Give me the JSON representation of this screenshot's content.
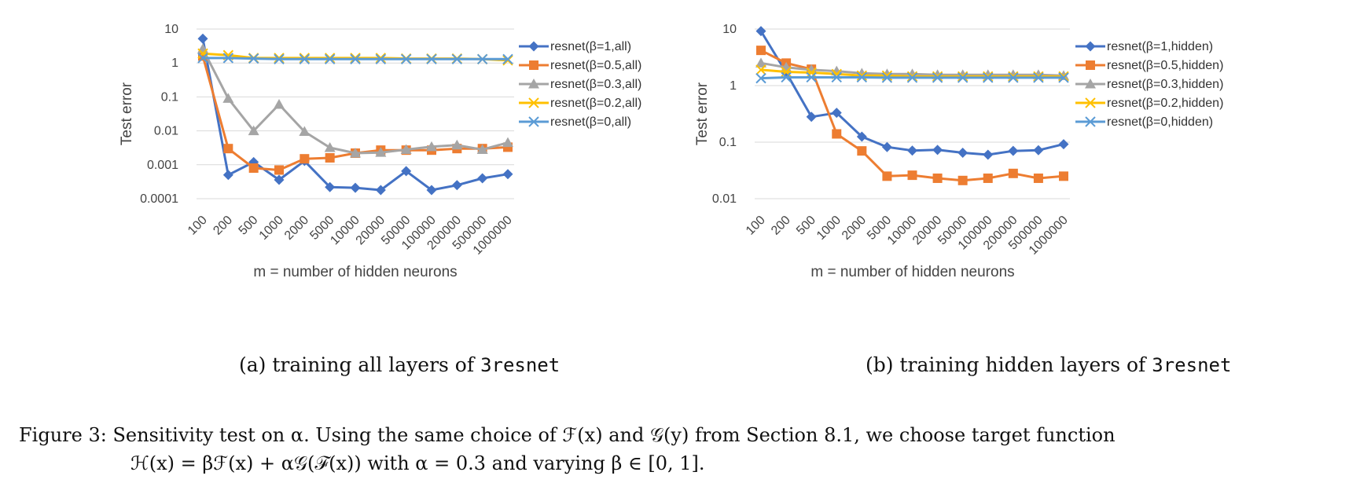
{
  "chart_data": [
    {
      "type": "line",
      "title": "",
      "xlabel": "m = number of hidden neurons",
      "ylabel": "Test error",
      "yscale": "log",
      "ylim": [
        0.0001,
        10
      ],
      "yticks": [
        "10",
        "1",
        "0.1",
        "0.01",
        "0.001",
        "0.0001"
      ],
      "grid": true,
      "legend_position": "right",
      "categories": [
        "100",
        "200",
        "500",
        "1000",
        "2000",
        "5000",
        "10000",
        "20000",
        "50000",
        "100000",
        "200000",
        "500000",
        "1000000"
      ],
      "series": [
        {
          "name": "resnet(β=1,all)",
          "color": "#4472C4",
          "marker": "diamond",
          "values": [
            5.2,
            0.0005,
            0.0012,
            0.00036,
            0.0013,
            0.00022,
            0.00021,
            0.00018,
            0.00065,
            0.00018,
            0.00025,
            0.0004,
            0.00053
          ]
        },
        {
          "name": "resnet(β=0.5,all)",
          "color": "#ED7D31",
          "marker": "square",
          "values": [
            1.6,
            0.003,
            0.0008,
            0.0007,
            0.0015,
            0.0016,
            0.0022,
            0.0027,
            0.0027,
            0.0027,
            0.003,
            0.003,
            0.0033
          ]
        },
        {
          "name": "resnet(β=0.3,all)",
          "color": "#A5A5A5",
          "marker": "triangle",
          "values": [
            2.6,
            0.09,
            0.01,
            0.06,
            0.0095,
            0.0032,
            0.0022,
            0.0023,
            0.0028,
            0.0034,
            0.0038,
            0.0028,
            0.0045
          ]
        },
        {
          "name": "resnet(β=0.2,all)",
          "color": "#FFC000",
          "marker": "x",
          "values": [
            1.9,
            1.7,
            1.4,
            1.4,
            1.4,
            1.4,
            1.4,
            1.4,
            1.35,
            1.35,
            1.35,
            1.3,
            1.2
          ]
        },
        {
          "name": "resnet(β=0,all)",
          "color": "#5B9BD5",
          "marker": "x",
          "values": [
            1.4,
            1.4,
            1.35,
            1.3,
            1.3,
            1.3,
            1.3,
            1.3,
            1.3,
            1.3,
            1.3,
            1.3,
            1.3
          ]
        }
      ]
    },
    {
      "type": "line",
      "title": "",
      "xlabel": "m = number of hidden neurons",
      "ylabel": "Test error",
      "yscale": "log",
      "ylim": [
        0.01,
        10
      ],
      "yticks": [
        "10",
        "1",
        "0.1",
        "0.01"
      ],
      "grid": true,
      "legend_position": "right",
      "categories": [
        "100",
        "200",
        "500",
        "1000",
        "2000",
        "5000",
        "10000",
        "20000",
        "50000",
        "100000",
        "200000",
        "500000",
        "1000000"
      ],
      "series": [
        {
          "name": "resnet(β=1,hidden)",
          "color": "#4472C4",
          "marker": "diamond",
          "values": [
            9.2,
            1.7,
            0.28,
            0.33,
            0.125,
            0.082,
            0.071,
            0.073,
            0.065,
            0.06,
            0.07,
            0.072,
            0.092
          ]
        },
        {
          "name": "resnet(β=0.5,hidden)",
          "color": "#ED7D31",
          "marker": "square",
          "values": [
            4.2,
            2.5,
            1.95,
            0.14,
            0.07,
            0.025,
            0.026,
            0.023,
            0.021,
            0.023,
            0.028,
            0.023,
            0.025
          ]
        },
        {
          "name": "resnet(β=0.3,hidden)",
          "color": "#A5A5A5",
          "marker": "triangle",
          "values": [
            2.5,
            2.1,
            1.9,
            1.8,
            1.65,
            1.6,
            1.6,
            1.55,
            1.55,
            1.55,
            1.55,
            1.55,
            1.5
          ]
        },
        {
          "name": "resnet(β=0.2,hidden)",
          "color": "#FFC000",
          "marker": "x",
          "values": [
            1.9,
            1.75,
            1.7,
            1.6,
            1.5,
            1.5,
            1.45,
            1.45,
            1.45,
            1.45,
            1.45,
            1.45,
            1.45
          ]
        },
        {
          "name": "resnet(β=0,hidden)",
          "color": "#5B9BD5",
          "marker": "x",
          "values": [
            1.35,
            1.4,
            1.4,
            1.4,
            1.4,
            1.38,
            1.38,
            1.38,
            1.38,
            1.38,
            1.38,
            1.38,
            1.38
          ]
        }
      ]
    }
  ],
  "subcaptions": [
    {
      "label": "(a) training all layers of",
      "code": "3resnet"
    },
    {
      "label": "(b) training hidden layers of",
      "code": "3resnet"
    }
  ],
  "caption": {
    "line1": "Figure 3: Sensitivity test on α. Using the same choice of ℱ(x) and 𝒢(y) from Section 8.1, we choose target function",
    "line2": "ℋ(x) = βℱ(x) + α𝒢(ℱ(x)) with α = 0.3 and varying β ∈ [0, 1]."
  }
}
